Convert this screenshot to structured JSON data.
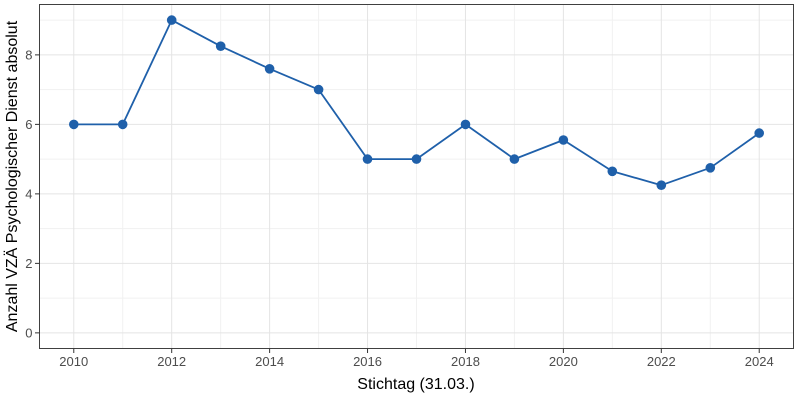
{
  "chart_data": {
    "type": "line",
    "title": "",
    "xlabel": "Stichtag (31.03.)",
    "ylabel": "Anzahl VZÄ Psychologischer Dienst absolut",
    "x": [
      2010,
      2011,
      2012,
      2013,
      2014,
      2015,
      2016,
      2017,
      2018,
      2019,
      2020,
      2021,
      2022,
      2023,
      2024
    ],
    "values": [
      6,
      6,
      9,
      8.25,
      7.6,
      7,
      5,
      5,
      6,
      5,
      5.55,
      4.65,
      4.25,
      4.75,
      5.75
    ],
    "x_ticks": [
      2010,
      2012,
      2014,
      2016,
      2018,
      2020,
      2022,
      2024
    ],
    "y_ticks": [
      0,
      2,
      4,
      6,
      8
    ],
    "xlim": [
      2009.3,
      2024.7
    ],
    "ylim": [
      -0.45,
      9.45
    ],
    "grid": "major+minor",
    "legend_position": "none",
    "markers": true,
    "colors": {
      "line": "#1F60AA",
      "point": "#1F60AA",
      "grid_major": "#E4E4E4",
      "grid_minor": "#F1F1F1",
      "panel_border": "#404040",
      "tick_mark": "#333333",
      "tick_label": "#4D4D4D",
      "axis_title": "#000000",
      "panel_bg": "#FFFFFF"
    }
  }
}
